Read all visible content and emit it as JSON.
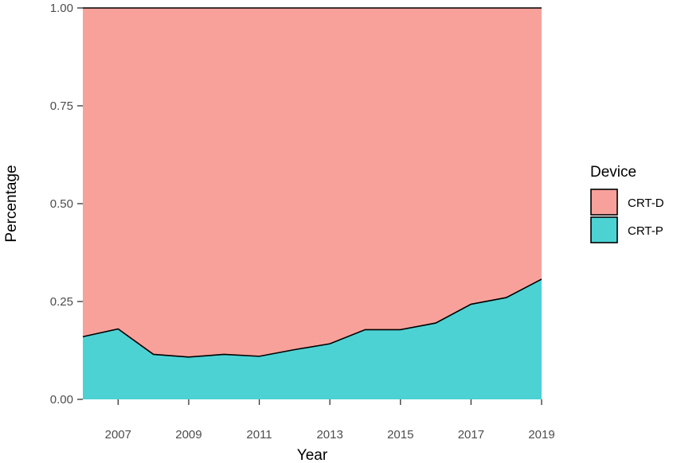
{
  "chart_data": {
    "type": "area",
    "stacked": true,
    "normalized": true,
    "x": [
      2006,
      2007,
      2008,
      2009,
      2010,
      2011,
      2012,
      2013,
      2014,
      2015,
      2016,
      2017,
      2018,
      2019
    ],
    "series": [
      {
        "name": "CRT-P",
        "color": "#4dd2d4",
        "values": [
          0.16,
          0.18,
          0.115,
          0.108,
          0.115,
          0.11,
          0.127,
          0.142,
          0.178,
          0.178,
          0.195,
          0.243,
          0.26,
          0.307
        ]
      },
      {
        "name": "CRT-D",
        "color": "#f8a19b",
        "values": [
          0.84,
          0.82,
          0.885,
          0.892,
          0.885,
          0.89,
          0.873,
          0.858,
          0.822,
          0.822,
          0.805,
          0.757,
          0.74,
          0.693
        ]
      }
    ],
    "xlabel": "Year",
    "ylabel": "Percentage",
    "xlim": [
      2006,
      2019
    ],
    "ylim": [
      0,
      1
    ],
    "x_tick_labels": [
      "2007",
      "2009",
      "2011",
      "2013",
      "2015",
      "2017",
      "2019"
    ],
    "y_tick_labels": [
      "0.00",
      "0.25",
      "0.50",
      "0.75",
      "1.00"
    ],
    "grid": false,
    "legend": {
      "title": "Device",
      "position": "right",
      "entries": [
        {
          "label": "CRT-D",
          "color": "#f8a19b"
        },
        {
          "label": "CRT-P",
          "color": "#4dd2d4"
        }
      ]
    }
  }
}
